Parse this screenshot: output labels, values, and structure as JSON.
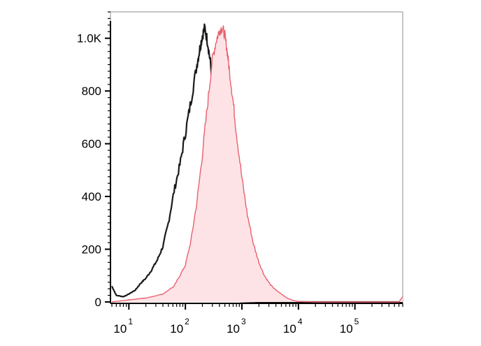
{
  "chart_data": {
    "type": "area",
    "title": "",
    "xlabel": "",
    "ylabel": "",
    "xscale": "log",
    "xlim": [
      5,
      700000
    ],
    "ylim": [
      0,
      1100
    ],
    "grid": false,
    "legend": "none",
    "y_ticks": [
      {
        "value": 0,
        "label": "0"
      },
      {
        "value": 200,
        "label": "200"
      },
      {
        "value": 400,
        "label": "400"
      },
      {
        "value": 600,
        "label": "600"
      },
      {
        "value": 800,
        "label": "800"
      },
      {
        "value": 1000,
        "label": "1.0K"
      }
    ],
    "x_ticks": [
      {
        "value": 10,
        "base": "10",
        "exp": "1"
      },
      {
        "value": 100,
        "base": "10",
        "exp": "2"
      },
      {
        "value": 1000,
        "base": "10",
        "exp": "3"
      },
      {
        "value": 10000,
        "base": "10",
        "exp": "4"
      },
      {
        "value": 100000,
        "base": "10",
        "exp": "5"
      }
    ],
    "series": [
      {
        "style": "black-outline",
        "color": "#1a1a1a",
        "x": [
          5,
          6,
          8,
          10,
          13,
          16,
          20,
          25,
          32,
          40,
          50,
          63,
          80,
          100,
          125,
          160,
          180,
          200,
          220,
          250,
          280,
          320,
          360,
          400,
          450,
          500,
          600,
          700,
          800,
          1000,
          1500,
          2000,
          5000,
          10000,
          100000,
          700000
        ],
        "y": [
          60,
          25,
          20,
          30,
          45,
          70,
          90,
          120,
          160,
          210,
          300,
          420,
          520,
          640,
          760,
          900,
          960,
          1010,
          1040,
          980,
          900,
          720,
          520,
          340,
          160,
          70,
          20,
          8,
          4,
          2,
          1,
          0,
          0,
          0,
          0,
          0
        ]
      },
      {
        "style": "pink-filled",
        "color": "#e8606f",
        "fill": "#fde3e6",
        "x": [
          5,
          10,
          20,
          40,
          63,
          80,
          100,
          125,
          160,
          200,
          250,
          300,
          350,
          400,
          450,
          500,
          550,
          600,
          700,
          800,
          1000,
          1250,
          1600,
          2000,
          2500,
          3200,
          4000,
          5000,
          6300,
          8000,
          10000,
          20000,
          100000,
          600000,
          700000
        ],
        "y": [
          0,
          8,
          15,
          30,
          60,
          100,
          140,
          230,
          380,
          560,
          760,
          920,
          990,
          1030,
          1040,
          1010,
          950,
          880,
          760,
          640,
          470,
          330,
          220,
          150,
          100,
          65,
          45,
          30,
          15,
          6,
          2,
          0,
          0,
          0,
          20
        ]
      }
    ]
  }
}
